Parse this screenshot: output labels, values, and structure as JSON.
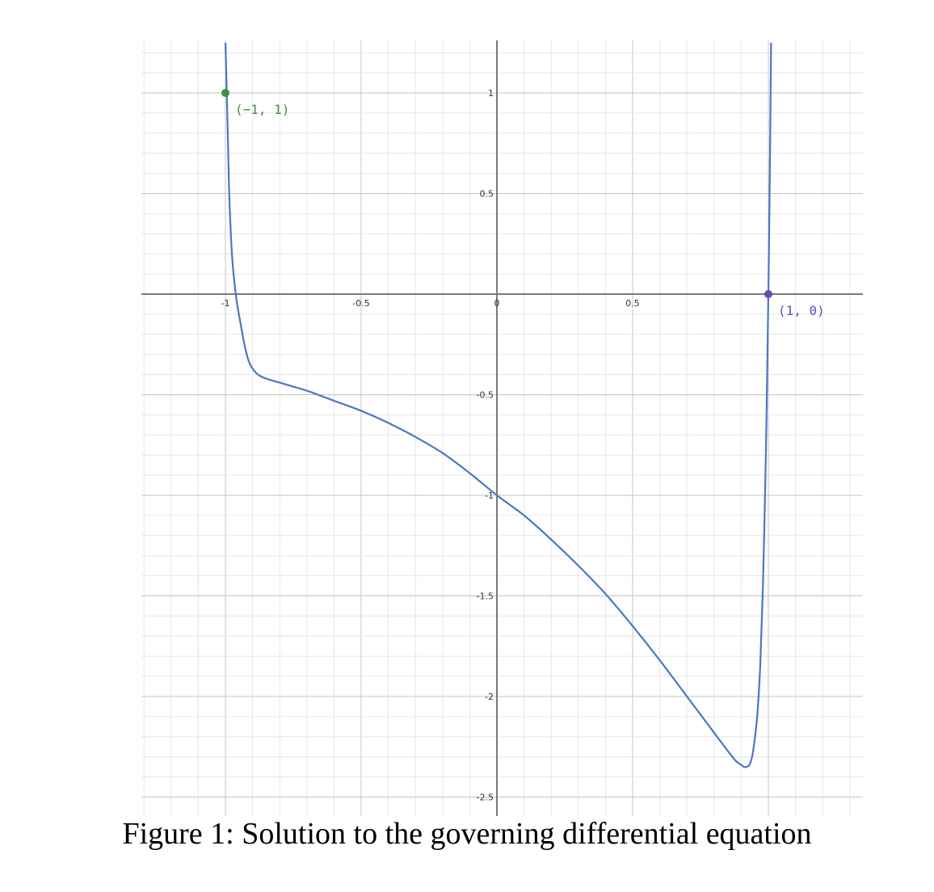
{
  "caption": "Figure 1: Solution to the governing differential equation",
  "chart_data": {
    "type": "line",
    "title": "",
    "xlabel": "",
    "ylabel": "",
    "xlim": [
      -1.3,
      1.35
    ],
    "ylim": [
      -2.6,
      1.25
    ],
    "grid": true,
    "x_ticks": [
      {
        "value": -1,
        "label": "-1"
      },
      {
        "value": -0.5,
        "label": "-0.5"
      },
      {
        "value": 0,
        "label": "0"
      },
      {
        "value": 0.5,
        "label": "0.5"
      }
    ],
    "y_ticks": [
      {
        "value": 1,
        "label": "1"
      },
      {
        "value": 0.5,
        "label": "0.5"
      },
      {
        "value": -0.5,
        "label": "-0.5"
      },
      {
        "value": -1,
        "label": "-1"
      },
      {
        "value": -1.5,
        "label": "-1.5"
      },
      {
        "value": -2,
        "label": "-2"
      },
      {
        "value": -2.5,
        "label": "-2.5"
      }
    ],
    "series": [
      {
        "color": "#4a78c2",
        "x": [
          -1.0,
          -0.995,
          -0.99,
          -0.985,
          -0.975,
          -0.96,
          -0.945,
          -0.93,
          -0.915,
          -0.9,
          -0.88,
          -0.85,
          -0.8,
          -0.75,
          -0.7,
          -0.6,
          -0.5,
          -0.4,
          -0.3,
          -0.2,
          -0.1,
          0.0,
          0.1,
          0.2,
          0.3,
          0.4,
          0.5,
          0.6,
          0.7,
          0.75,
          0.8,
          0.85,
          0.88,
          0.9,
          0.91,
          0.92,
          0.93,
          0.94,
          0.95,
          0.96,
          0.97,
          0.98,
          0.99,
          0.995,
          1.0,
          1.005,
          1.01
        ],
        "y": [
          1.25,
          1.0,
          0.72,
          0.46,
          0.18,
          -0.02,
          -0.14,
          -0.25,
          -0.33,
          -0.37,
          -0.4,
          -0.42,
          -0.44,
          -0.46,
          -0.48,
          -0.53,
          -0.58,
          -0.64,
          -0.71,
          -0.79,
          -0.89,
          -1.0,
          -1.1,
          -1.22,
          -1.35,
          -1.49,
          -1.65,
          -1.82,
          -2.0,
          -2.09,
          -2.18,
          -2.27,
          -2.32,
          -2.34,
          -2.35,
          -2.35,
          -2.34,
          -2.3,
          -2.21,
          -2.08,
          -1.85,
          -1.45,
          -0.85,
          -0.45,
          0.0,
          0.55,
          1.25
        ]
      }
    ],
    "points": [
      {
        "x": -1,
        "y": 1,
        "label": "(−1, 1)",
        "color": "#3f8f3f"
      },
      {
        "x": 1,
        "y": 0,
        "label": "(1, 0)",
        "color": "#6a4ca8"
      }
    ]
  }
}
